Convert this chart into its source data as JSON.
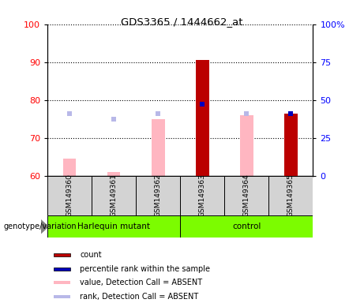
{
  "title": "GDS3365 / 1444662_at",
  "samples": [
    "GSM149360",
    "GSM149361",
    "GSM149362",
    "GSM149363",
    "GSM149364",
    "GSM149365"
  ],
  "ylim_left": [
    60,
    100
  ],
  "ylim_right": [
    0,
    100
  ],
  "yticks_left": [
    60,
    70,
    80,
    90,
    100
  ],
  "yticks_right": [
    0,
    25,
    50,
    75,
    100
  ],
  "yticklabels_right": [
    "0",
    "25",
    "50",
    "75",
    "100%"
  ],
  "bar_width": 0.3,
  "value_absent": [
    64.5,
    61.0,
    75.0,
    null,
    76.0,
    null
  ],
  "rank_absent": [
    76.5,
    75.0,
    76.5,
    null,
    76.5,
    null
  ],
  "count_present": [
    null,
    null,
    null,
    90.5,
    null,
    76.5
  ],
  "percentile_present": [
    null,
    null,
    null,
    79.0,
    null,
    76.5
  ],
  "color_count": "#BB0000",
  "color_percentile": "#0000BB",
  "color_value_absent": "#FFB6C1",
  "color_rank_absent": "#B8B8E8",
  "legend_items": [
    {
      "label": "count",
      "color": "#BB0000"
    },
    {
      "label": "percentile rank within the sample",
      "color": "#0000BB"
    },
    {
      "label": "value, Detection Call = ABSENT",
      "color": "#FFB6C1"
    },
    {
      "label": "rank, Detection Call = ABSENT",
      "color": "#B8B8E8"
    }
  ],
  "genotype_label": "genotype/variation",
  "background_color": "#ffffff",
  "label_area_color": "#d3d3d3",
  "group_green": "#7CFC00"
}
